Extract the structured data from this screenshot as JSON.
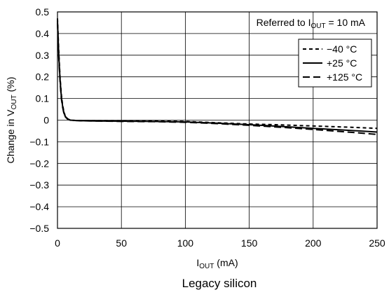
{
  "chart_data": {
    "type": "line",
    "xlabel_main": "I",
    "xlabel_sub": "OUT",
    "xlabel_unit": " (mA)",
    "ylabel_main": "Change in V",
    "ylabel_sub": "OUT",
    "ylabel_unit": " (%)",
    "xlim": [
      0,
      250
    ],
    "ylim": [
      -0.5,
      0.5
    ],
    "xticks": [
      0,
      50,
      100,
      150,
      200,
      250
    ],
    "yticks": [
      0.5,
      0.4,
      0.3,
      0.2,
      0.1,
      0,
      -0.1,
      -0.2,
      -0.3,
      -0.4,
      -0.5
    ],
    "ytick_labels": [
      "0.5",
      "0.4",
      "0.3",
      "0.2",
      "0.1",
      "0",
      "−0.1",
      "−0.2",
      "−0.3",
      "−0.4",
      "−0.5"
    ],
    "grid": true,
    "legend_position": "top-right",
    "annotation": {
      "prefix": "Referred to I",
      "sub": "OUT",
      "suffix": " = 10 mA"
    },
    "series": [
      {
        "name": "−40 °C",
        "style": "dashed-short",
        "x": [
          0,
          1,
          2,
          3,
          4,
          5,
          6,
          8,
          10,
          15,
          20,
          30,
          50,
          75,
          100,
          125,
          150,
          175,
          200,
          225,
          250
        ],
        "y": [
          0.47,
          0.32,
          0.2,
          0.12,
          0.07,
          0.04,
          0.02,
          0.006,
          0.0,
          -0.002,
          -0.003,
          -0.003,
          -0.004,
          -0.004,
          -0.006,
          -0.012,
          -0.018,
          -0.022,
          -0.027,
          -0.032,
          -0.038
        ]
      },
      {
        "name": "+25 °C",
        "style": "solid",
        "x": [
          0,
          1,
          2,
          3,
          4,
          5,
          6,
          8,
          10,
          15,
          20,
          30,
          50,
          75,
          100,
          125,
          150,
          175,
          200,
          225,
          250
        ],
        "y": [
          0.46,
          0.3,
          0.19,
          0.11,
          0.065,
          0.035,
          0.018,
          0.005,
          0.0,
          -0.002,
          -0.003,
          -0.004,
          -0.005,
          -0.006,
          -0.008,
          -0.014,
          -0.021,
          -0.029,
          -0.038,
          -0.046,
          -0.055
        ]
      },
      {
        "name": "+125 °C",
        "style": "dashed-long",
        "x": [
          0,
          1,
          2,
          3,
          4,
          5,
          6,
          8,
          10,
          15,
          20,
          30,
          50,
          75,
          100,
          125,
          150,
          175,
          200,
          225,
          250
        ],
        "y": [
          0.45,
          0.29,
          0.18,
          0.1,
          0.06,
          0.032,
          0.016,
          0.004,
          0.0,
          -0.002,
          -0.003,
          -0.004,
          -0.006,
          -0.007,
          -0.01,
          -0.016,
          -0.024,
          -0.033,
          -0.043,
          -0.054,
          -0.066
        ]
      }
    ],
    "caption": "Legacy silicon"
  }
}
